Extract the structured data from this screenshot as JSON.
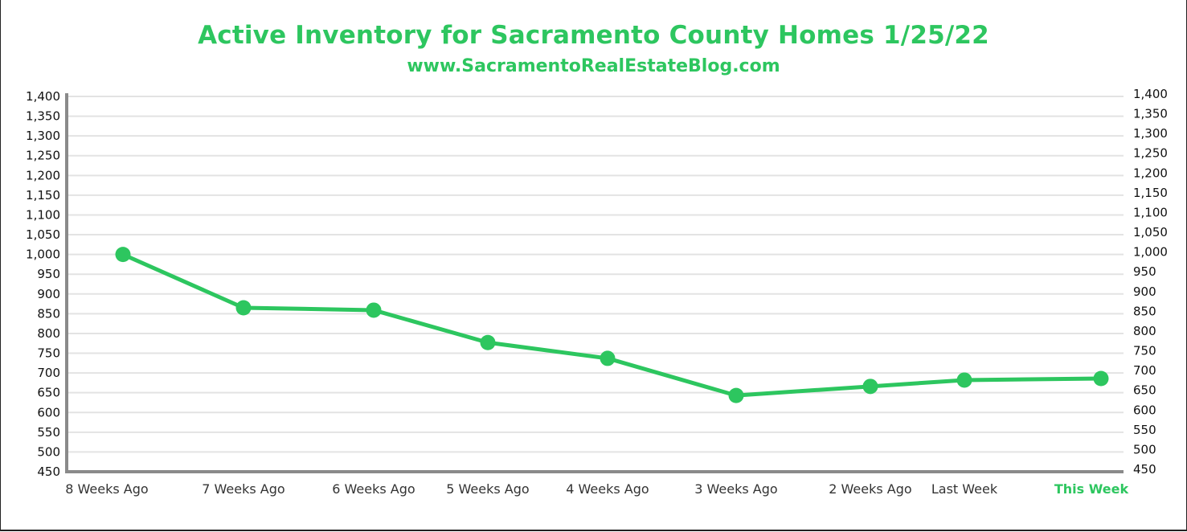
{
  "chart_data": {
    "type": "line",
    "title": "Active Inventory for Sacramento County Homes 1/25/22",
    "subtitle": "www.SacramentoRealEstateBlog.com",
    "xlabel": "",
    "ylabel": "",
    "categories": [
      "8 Weeks Ago",
      "7 Weeks Ago",
      "6 Weeks Ago",
      "5 Weeks Ago",
      "4 Weeks Ago",
      "3 Weeks Ago",
      "2 Weeks Ago",
      "Last Week",
      "This Week"
    ],
    "highlight_category": "This Week",
    "series": [
      {
        "name": "Active Inventory",
        "values": [
          1000,
          865,
          859,
          777,
          737,
          643,
          666,
          682,
          686
        ]
      }
    ],
    "ylim": [
      450,
      1400
    ],
    "y_ticks": [
      450,
      500,
      550,
      600,
      650,
      700,
      750,
      800,
      850,
      900,
      950,
      1000,
      1050,
      1100,
      1150,
      1200,
      1250,
      1300,
      1350,
      1400
    ],
    "y_tick_labels": [
      "450",
      "500",
      "550",
      "600",
      "650",
      "700",
      "750",
      "800",
      "850",
      "900",
      "950",
      "1,000",
      "1,050",
      "1,100",
      "1,150",
      "1,200",
      "1,250",
      "1,300",
      "1,350",
      "1,400"
    ],
    "secondary_y_axis": true,
    "grid": true,
    "legend": "none",
    "colors": {
      "line": "#2dc65f",
      "title": "#2dc65f",
      "grid": "#e3e3e3",
      "axis": "#8a8a8a",
      "highlight_label": "#2dc65f"
    }
  }
}
